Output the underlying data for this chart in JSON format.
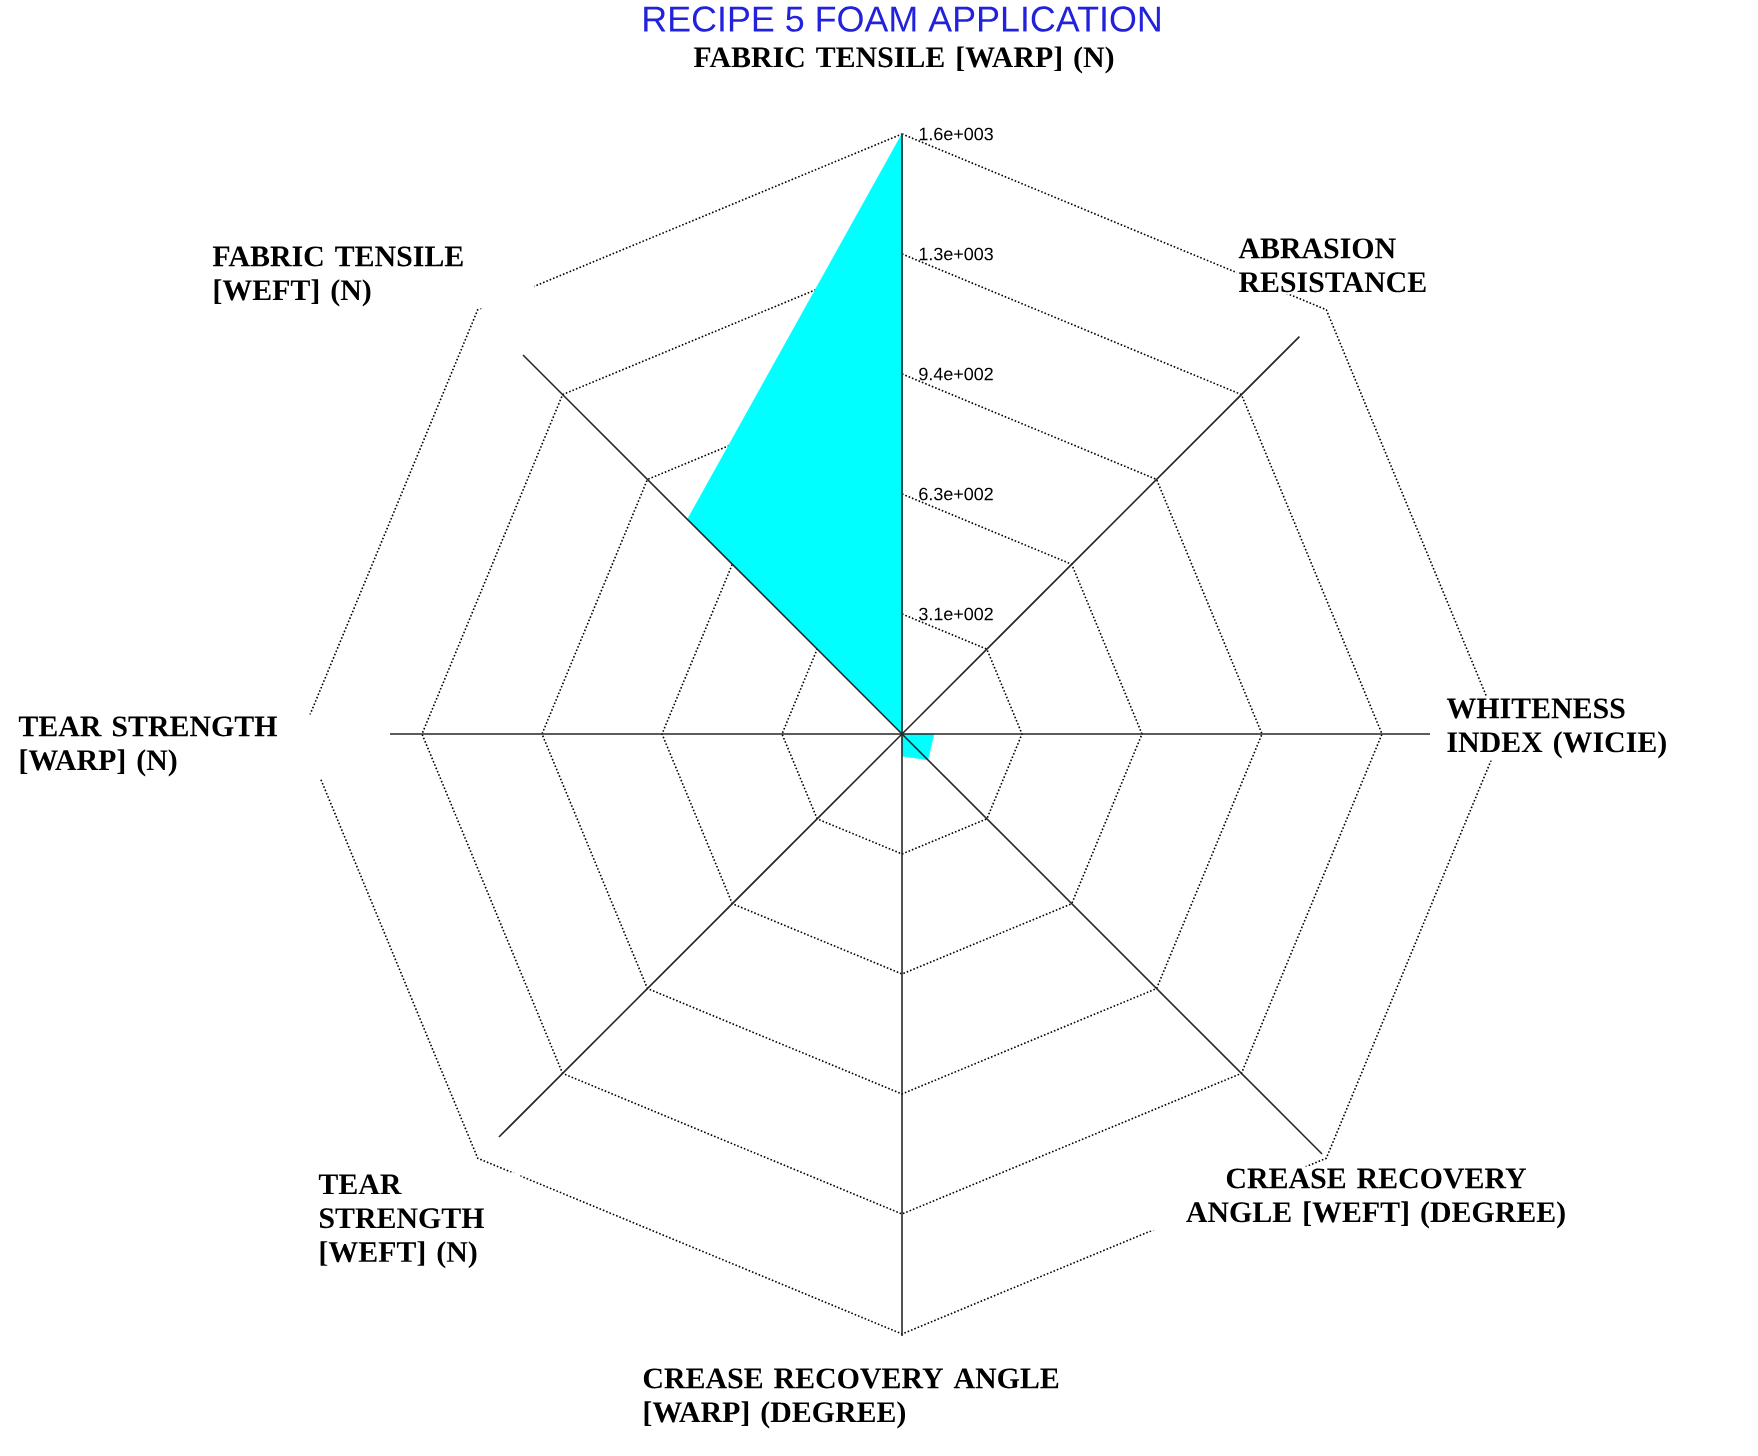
{
  "chart_data": {
    "type": "radar",
    "title": "RECIPE 5 FOAM APPLICATION",
    "categories": [
      "FABRIC TENSILE [WARP] (N)",
      "ABRASION RESISTANCE",
      "WHITENESS INDEX (WICIE)",
      "CREASE RECOVERY ANGLE [WEFT] (DEGREE)",
      "CREASE RECOVERY ANGLE [WARP] (DEGREE)",
      "TEAR STRENGTH [WEFT] (N)",
      "TEAR STRENGTH [WARP] (N)",
      "FABRIC TENSILE [WEFT] (N)"
    ],
    "series": [
      {
        "color": "#00ffff",
        "values": [
          1562.5,
          0,
          83,
          95,
          57,
          0,
          0,
          790
        ]
      }
    ],
    "ylim": [
      0,
      1562.5
    ],
    "yticks": [
      {
        "value": 312.5,
        "label": "3.1e+002"
      },
      {
        "value": 625,
        "label": "6.3e+002"
      },
      {
        "value": 937.5,
        "label": "9.4e+002"
      },
      {
        "value": 1250,
        "label": "1.3e+003"
      },
      {
        "value": 1562.5,
        "label": "1.6e+003"
      }
    ],
    "grid": true
  }
}
